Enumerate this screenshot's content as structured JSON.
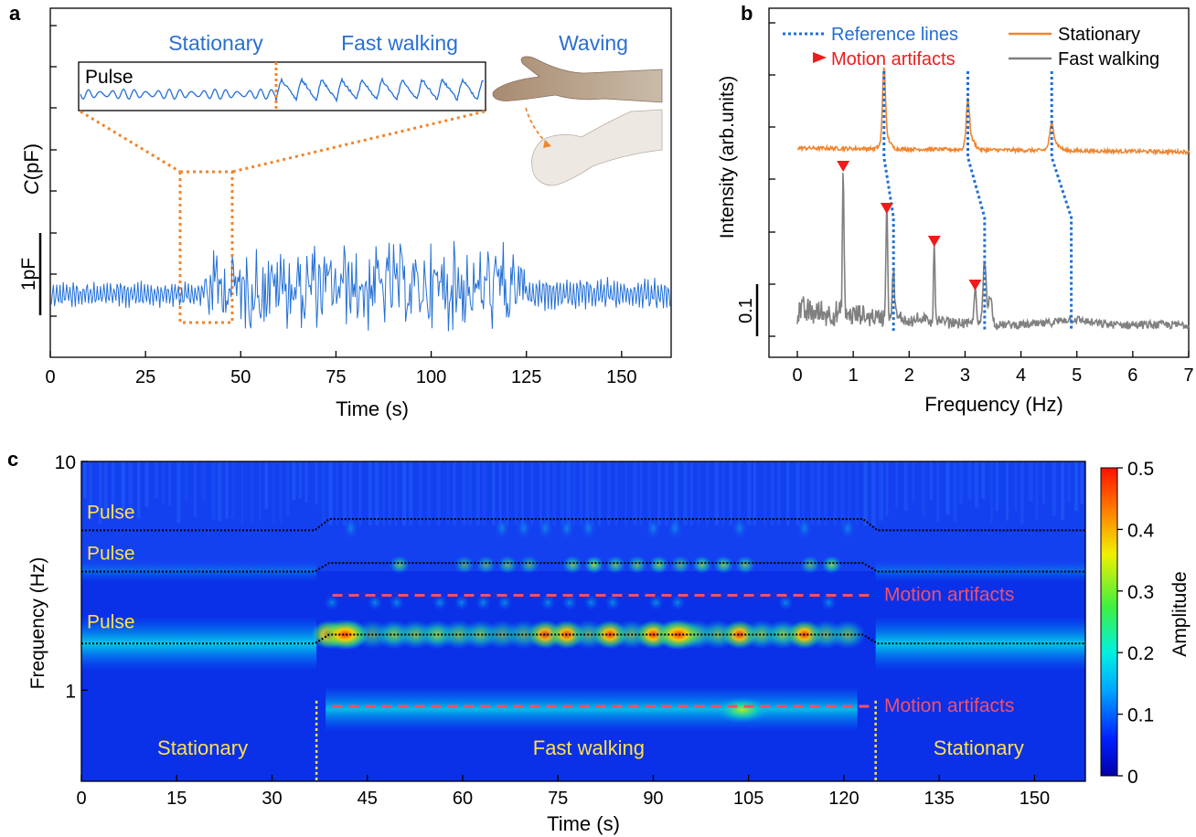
{
  "panel_labels": {
    "a": "a",
    "b": "b",
    "c": "c"
  },
  "colors": {
    "signal_blue": "#2470d6",
    "label_blue": "#2a6fd1",
    "orange": "#f0852d",
    "gray": "#808080",
    "ref_blue": "#1f6fd6",
    "red": "#ee1c1c",
    "yellow_label": "#ffe14a",
    "dash_red": "#f0506a",
    "frame": "#000000"
  },
  "chart_data": [
    {
      "id": "a",
      "type": "line",
      "xlabel": "Time (s)",
      "ylabel_italic": "C",
      "ylabel_unit": "(pF)",
      "xlim": [
        0,
        163
      ],
      "xticks": [
        0,
        25,
        50,
        75,
        100,
        125,
        150
      ],
      "scale_bar_label": "1pF",
      "phase_labels": [
        "Stationary",
        "Fast walking",
        "Waving"
      ],
      "inset_label": "Pulse",
      "zoom_window_s": [
        35,
        48
      ],
      "segments": [
        {
          "phase": "Stationary",
          "t_start": 0,
          "t_end": 40,
          "amplitude_pF": 0.55
        },
        {
          "phase": "Fast walking",
          "t_start": 40,
          "t_end": 125,
          "amplitude_pF": 1.6
        },
        {
          "phase": "Waving",
          "t_start": 125,
          "t_end": 163,
          "amplitude_pF": 0.65
        }
      ]
    },
    {
      "id": "b",
      "type": "line",
      "xlabel": "Frequency (Hz)",
      "ylabel": "Intensity (arb.units)",
      "xlim": [
        0,
        7
      ],
      "xticks": [
        0,
        1,
        2,
        3,
        4,
        5,
        6,
        7
      ],
      "scale_bar_label": "0.1",
      "legend": {
        "reference": "Reference lines",
        "artifact": "Motion artifacts",
        "series1": "Stationary",
        "series2": "Fast walking"
      },
      "series": [
        {
          "name": "Stationary",
          "peaks_hz": [
            1.55,
            3.05,
            4.55
          ]
        },
        {
          "name": "Fast walking",
          "peaks_hz": [
            0.82,
            1.62,
            1.72,
            2.45,
            3.2,
            3.35
          ]
        }
      ],
      "reference_lines": [
        {
          "top_hz": 1.55,
          "bottom_hz": 1.72
        },
        {
          "top_hz": 3.05,
          "bottom_hz": 3.35
        },
        {
          "top_hz": 4.55,
          "bottom_hz": 4.9
        }
      ],
      "motion_artifacts_hz": [
        0.82,
        1.6,
        2.45,
        3.18
      ]
    },
    {
      "id": "c",
      "type": "heatmap",
      "xlabel": "Time (s)",
      "ylabel": "Frequency (Hz)",
      "xlim": [
        0,
        158
      ],
      "xticks": [
        0,
        15,
        30,
        45,
        60,
        75,
        90,
        105,
        120,
        135,
        150
      ],
      "ylim": [
        0.4,
        10
      ],
      "yscale": "log",
      "yticks": [
        1,
        10
      ],
      "colorbar": {
        "label": "Amplitude",
        "ticks": [
          0,
          0.1,
          0.2,
          0.3,
          0.4,
          0.5
        ]
      },
      "region_labels": [
        "Stationary",
        "Fast walking",
        "Stationary"
      ],
      "walking_bounds_s": [
        37,
        125
      ],
      "pulse_labels": [
        "Pulse",
        "Pulse",
        "Pulse"
      ],
      "pulse_bands_hz": {
        "stationary": [
          1.6,
          3.3,
          5.0
        ],
        "walking": [
          1.75,
          3.6,
          5.6
        ]
      },
      "artifact_label": "Motion artifacts",
      "artifact_bands_hz": [
        2.6,
        0.85
      ]
    }
  ]
}
